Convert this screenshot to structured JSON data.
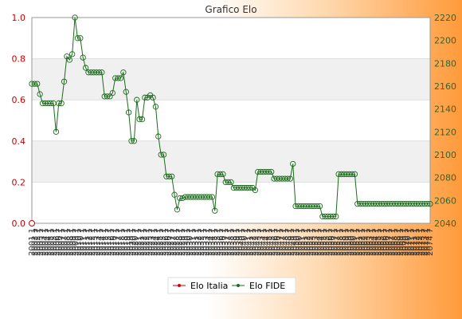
{
  "chart_data": {
    "type": "line",
    "title": "Grafico Elo",
    "left_axis": {
      "ylim": [
        0,
        1.0
      ],
      "ticks": [
        "0.0",
        "0.2",
        "0.4",
        "0.6",
        "0.8",
        "1.0"
      ],
      "color": "#cc0000"
    },
    "right_axis": {
      "ylim": [
        2040,
        2220
      ],
      "ticks": [
        "2040",
        "2060",
        "2080",
        "2100",
        "2120",
        "2140",
        "2160",
        "2180",
        "2200",
        "2220"
      ],
      "color": "#336633"
    },
    "grid": true,
    "legend_position": "bottom",
    "series": [
      {
        "name": "Elo Italia",
        "axis": "left",
        "color": "#cc0000",
        "values": [
          0.0
        ]
      },
      {
        "name": "Elo FIDE",
        "axis": "right",
        "color": "#1a6b1a",
        "values": [
          2162,
          2162,
          2162,
          2153,
          2145,
          2145,
          2145,
          2145,
          2145,
          2120,
          2145,
          2145,
          2164,
          2186,
          2183,
          2188,
          2220,
          2202,
          2202,
          2185,
          2176,
          2172,
          2172,
          2172,
          2172,
          2172,
          2172,
          2151,
          2151,
          2151,
          2154,
          2167,
          2167,
          2167,
          2172,
          2155,
          2137,
          2112,
          2112,
          2148,
          2131,
          2131,
          2150,
          2150,
          2152,
          2150,
          2142,
          2116,
          2100,
          2100,
          2081,
          2081,
          2081,
          2065,
          2052,
          2062,
          2062,
          2063,
          2063,
          2063,
          2063,
          2063,
          2063,
          2063,
          2063,
          2063,
          2063,
          2063,
          2051,
          2083,
          2083,
          2083,
          2076,
          2076,
          2076,
          2071,
          2071,
          2071,
          2071,
          2071,
          2071,
          2071,
          2071,
          2069,
          2085,
          2085,
          2085,
          2085,
          2085,
          2085,
          2079,
          2079,
          2079,
          2079,
          2079,
          2079,
          2079,
          2092,
          2055,
          2055,
          2055,
          2055,
          2055,
          2055,
          2055,
          2055,
          2055,
          2055,
          2046,
          2046,
          2046,
          2046,
          2046,
          2046,
          2083,
          2083,
          2083,
          2083,
          2083,
          2083,
          2083,
          2057,
          2057,
          2057,
          2057,
          2057,
          2057,
          2057,
          2057,
          2057,
          2057,
          2057,
          2057,
          2057,
          2057,
          2057,
          2057,
          2057,
          2057,
          2057,
          2057,
          2057,
          2057,
          2057,
          2057,
          2057,
          2057,
          2057,
          2057
        ]
      }
    ],
    "x_tick_labels": [
      "2001 1",
      "2002 1",
      "2002 7",
      "2003 1",
      "2003 7",
      "2004 1",
      "2004 7",
      "2005 1",
      "2005 7",
      "2006 1",
      "2006 7",
      "2007 1",
      "2007 7",
      "2008 1",
      "2008 7",
      "2009 1",
      "2009 7",
      "2010 1",
      "2010 7",
      "2011 1",
      "2011 7",
      "2012 1",
      "2012 7",
      "2013 1",
      "2013 7",
      "2014 1",
      "2014 7",
      "2015 1",
      "2015 7",
      "2016 1",
      "2016 7",
      "2017 1",
      "2017 7",
      "2018 1",
      "2018 7",
      "2019 1",
      "2019 7",
      "2020 1",
      "2020 7",
      "2021 1",
      "2021 7",
      "2022 1",
      "2022 7",
      "2023 1",
      "2023 7",
      "2024 1",
      "2024 7",
      "2025 1",
      "2025 7",
      "2026 1",
      "2026 7",
      "2027 1",
      "2027 7",
      "2028 1",
      "2028 7",
      "2029 1",
      "2029 7",
      "2030 1",
      "2030 7",
      "2031 1",
      "2031 7",
      "2032 1",
      "2032 7",
      "2033 1",
      "2033 7",
      "2034 1",
      "2034 7",
      "2035 1",
      "2035 7",
      "2036 1",
      "2036 7",
      "2037 1",
      "2037 7",
      "2038 1",
      "2038 7",
      "2039 1",
      "2039 7",
      "2040 1",
      "2040 7",
      "2041 1",
      "2041 7",
      "2042 1",
      "2042 7",
      "2043 1",
      "2043 7",
      "2044 1",
      "2044 7",
      "2045 1",
      "2045 7",
      "2046 1",
      "2046 7",
      "2047 1",
      "2047 7",
      "2048 1",
      "2048 7",
      "2049 1",
      "2049 7",
      "2050 1",
      "2050 7",
      "2051 1",
      "2051 7",
      "2052 1",
      "2052 7",
      "2053 1",
      "2053 7",
      "2054 1",
      "2054 7",
      "2055 1",
      "2055 7",
      "2056 1",
      "2056 7",
      "2057 1",
      "2057 7",
      "2058 1",
      "2058 7",
      "2059 1",
      "2059 7",
      "2060 1",
      "2060 7",
      "2061 1",
      "2061 7",
      "2062 1",
      "2062 7",
      "2063 1",
      "2063 7",
      "2064 1",
      "2064 7",
      "2065 1",
      "2065 7",
      "2066 1",
      "2066 7",
      "2067 1",
      "2067 7",
      "2068 1",
      "2068 7",
      "2069 1",
      "2069 7",
      "2070 1",
      "2070 7",
      "2071 1",
      "2071 7",
      "2072 1",
      "2072 7",
      "2073 1",
      "2073 7",
      "2074 1",
      "2074 7"
    ]
  }
}
